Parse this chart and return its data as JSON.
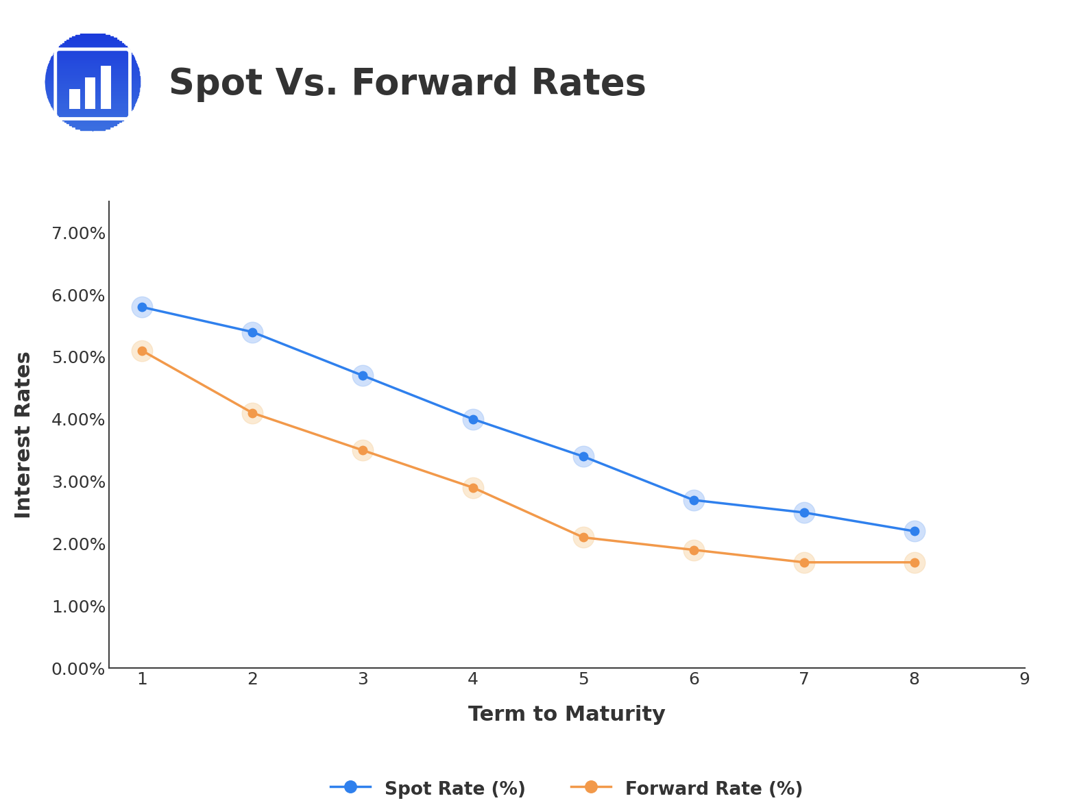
{
  "title": "Spot Vs. Forward Rates",
  "xlabel": "Term to Maturity",
  "ylabel": "Interest Rates",
  "x": [
    1,
    2,
    3,
    4,
    5,
    6,
    7,
    8
  ],
  "spot_rate": [
    0.058,
    0.054,
    0.047,
    0.04,
    0.034,
    0.027,
    0.025,
    0.022
  ],
  "forward_rate": [
    0.051,
    0.041,
    0.035,
    0.029,
    0.021,
    0.019,
    0.017,
    0.017
  ],
  "spot_color": "#2F80ED",
  "forward_color": "#F2994A",
  "spot_halo": "#A8C8F8",
  "forward_halo": "#F8D9B0",
  "background_color": "#FFFFFF",
  "axis_color": "#404040",
  "text_color": "#333333",
  "title_fontsize": 38,
  "label_fontsize": 22,
  "tick_fontsize": 18,
  "legend_fontsize": 19,
  "xlim": [
    0.7,
    9.0
  ],
  "ylim": [
    0.0,
    0.075
  ],
  "yticks": [
    0.0,
    0.01,
    0.02,
    0.03,
    0.04,
    0.05,
    0.06,
    0.07
  ],
  "xticks": [
    1,
    2,
    3,
    4,
    5,
    6,
    7,
    8,
    9
  ],
  "line_width": 2.5,
  "marker_size": 9,
  "halo_size": 22,
  "legend_spot_label": "Spot Rate (%)",
  "legend_forward_label": "Forward Rate (%)"
}
